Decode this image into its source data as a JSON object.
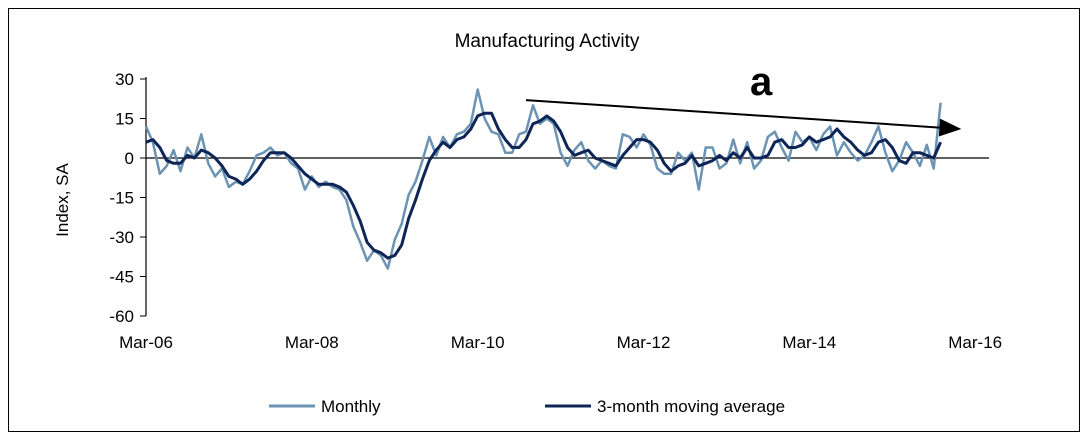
{
  "chart_data": {
    "type": "line",
    "title": "Manufacturing  Activity",
    "xlabel": "",
    "ylabel": "Index,  SA",
    "ylim": [
      -60,
      30
    ],
    "yticks": [
      "30",
      "15",
      "0",
      "-15",
      "-30",
      "-45",
      "-60"
    ],
    "ytick_values": [
      30,
      15,
      0,
      -15,
      -30,
      -45,
      -60
    ],
    "x_range": [
      "2006-03",
      "2016-05"
    ],
    "xticks": [
      "Mar-06",
      "Mar-08",
      "Mar-10",
      "Mar-12",
      "Mar-14",
      "Mar-16"
    ],
    "xtick_months": [
      "2006-03",
      "2008-03",
      "2010-03",
      "2012-03",
      "2014-03",
      "2016-03"
    ],
    "annotation": "a",
    "annotation_arrow": {
      "from": [
        "2010-10",
        22
      ],
      "to": [
        "2016-01",
        11
      ]
    },
    "legend_position": "bottom",
    "colors": {
      "Monthly": "#6b93b3",
      "3-month moving average": "#0d2557"
    },
    "series": [
      {
        "name": "Monthly",
        "start": "2006-03",
        "values": [
          12,
          6,
          -6,
          -3,
          3,
          -5,
          4,
          0,
          9,
          -2,
          -7,
          -4,
          -11,
          -9,
          -10,
          -5,
          1,
          2,
          4,
          1,
          2,
          -2,
          -4,
          -12,
          -7,
          -11,
          -9,
          -11,
          -12,
          -16,
          -26,
          -32,
          -39,
          -35,
          -37,
          -42,
          -31,
          -25,
          -14,
          -9,
          -1,
          8,
          1,
          8,
          4,
          9,
          10,
          13,
          26,
          15,
          10,
          9,
          2,
          2,
          9,
          10,
          20,
          13,
          15,
          13,
          2,
          -3,
          3,
          6,
          -1,
          -4,
          -1,
          -3,
          -4,
          9,
          8,
          4,
          9,
          5,
          -4,
          -6,
          -6,
          2,
          -1,
          2,
          -12,
          4,
          4,
          -4,
          -2,
          7,
          -2,
          6,
          -4,
          -1,
          8,
          10,
          4,
          -1,
          10,
          6,
          8,
          3,
          9,
          12,
          1,
          6,
          2,
          -1,
          1,
          6,
          12,
          2,
          -5,
          -1,
          6,
          2,
          -3,
          5,
          -4,
          21
        ]
      },
      {
        "name": "3-month moving average",
        "start": "2006-03",
        "values": [
          6,
          7,
          4,
          -1,
          -2,
          -2,
          1,
          0,
          3,
          2,
          0,
          -3,
          -7,
          -8,
          -10,
          -8,
          -5,
          -1,
          2,
          2,
          2,
          0,
          -3,
          -6,
          -8,
          -10,
          -10,
          -10,
          -11,
          -13,
          -18,
          -24,
          -32,
          -35,
          -36,
          -38,
          -37,
          -33,
          -23,
          -16,
          -8,
          -1,
          3,
          6,
          4,
          7,
          8,
          11,
          16,
          17,
          17,
          11,
          7,
          4,
          4,
          7,
          13,
          14,
          16,
          14,
          10,
          4,
          1,
          2,
          3,
          0,
          -1,
          -2,
          -3,
          1,
          4,
          7,
          7,
          6,
          3,
          -2,
          -5,
          -3,
          -2,
          1,
          -3,
          -2,
          -1,
          1,
          -1,
          2,
          0,
          4,
          0,
          0,
          1,
          6,
          7,
          4,
          4,
          5,
          8,
          6,
          7,
          8,
          11,
          8,
          6,
          3,
          1,
          2,
          6,
          7,
          4,
          -1,
          -2,
          2,
          2,
          1,
          0,
          6
        ]
      }
    ]
  }
}
